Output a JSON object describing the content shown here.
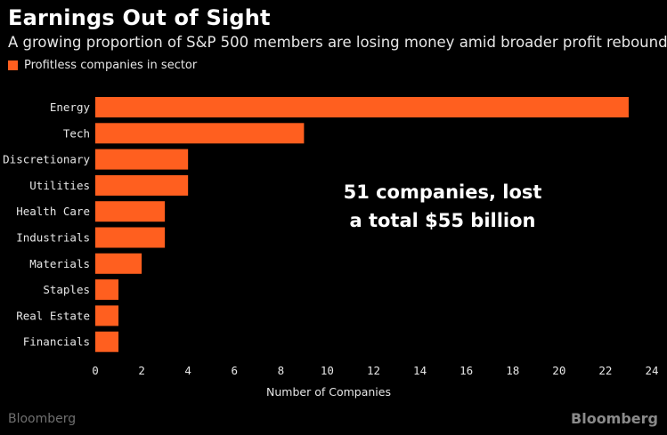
{
  "header": {
    "title": "Earnings Out of Sight",
    "subtitle": "A growing proportion of S&P 500 members are losing money amid broader profit rebound"
  },
  "legend": {
    "label": "Profitless companies in sector"
  },
  "annotation": {
    "line1": "51 companies, lost",
    "line2": "a total $55 billion"
  },
  "footer": {
    "source_left": "Bloomberg",
    "source_right": "Bloomberg"
  },
  "colors": {
    "bar": "#ff5f1f",
    "background": "#000000"
  },
  "chart_data": {
    "type": "bar",
    "orientation": "horizontal",
    "categories": [
      "Energy",
      "Tech",
      "Discretionary",
      "Utilities",
      "Health Care",
      "Industrials",
      "Materials",
      "Staples",
      "Real Estate",
      "Financials"
    ],
    "series": [
      {
        "name": "Profitless companies in sector",
        "values": [
          23,
          9,
          4,
          4,
          3,
          3,
          2,
          1,
          1,
          1
        ]
      }
    ],
    "xlabel": "Number of Companies",
    "xlim": [
      0,
      24
    ],
    "xticks": [
      0,
      2,
      4,
      6,
      8,
      10,
      12,
      14,
      16,
      18,
      20,
      22,
      24
    ],
    "grid": false,
    "legend_position": "top-left"
  }
}
